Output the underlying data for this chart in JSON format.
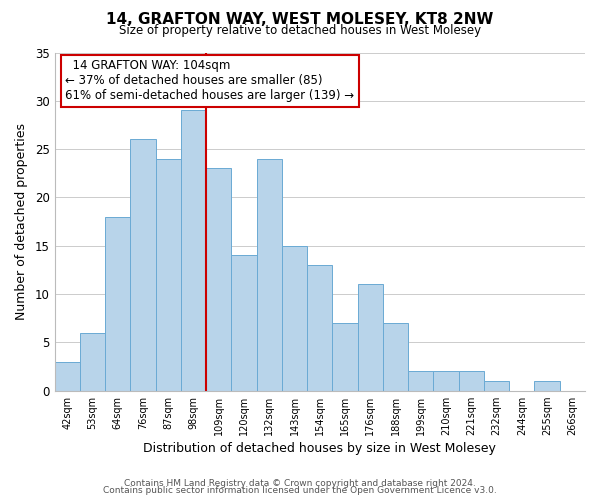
{
  "title": "14, GRAFTON WAY, WEST MOLESEY, KT8 2NW",
  "subtitle": "Size of property relative to detached houses in West Molesey",
  "xlabel": "Distribution of detached houses by size in West Molesey",
  "ylabel": "Number of detached properties",
  "bar_labels": [
    "42sqm",
    "53sqm",
    "64sqm",
    "76sqm",
    "87sqm",
    "98sqm",
    "109sqm",
    "120sqm",
    "132sqm",
    "143sqm",
    "154sqm",
    "165sqm",
    "176sqm",
    "188sqm",
    "199sqm",
    "210sqm",
    "221sqm",
    "232sqm",
    "244sqm",
    "255sqm",
    "266sqm"
  ],
  "bar_values": [
    3,
    6,
    18,
    26,
    24,
    29,
    23,
    14,
    24,
    15,
    13,
    7,
    11,
    7,
    2,
    2,
    2,
    1,
    0,
    1,
    0
  ],
  "bar_color": "#b8d4ea",
  "bar_edge_color": "#6aaad4",
  "vline_x": 5.5,
  "vline_color": "#cc0000",
  "annotation_title": "14 GRAFTON WAY: 104sqm",
  "annotation_line1": "← 37% of detached houses are smaller (85)",
  "annotation_line2": "61% of semi-detached houses are larger (139) →",
  "annotation_box_color": "#ffffff",
  "annotation_box_edge": "#cc0000",
  "ylim": [
    0,
    35
  ],
  "yticks": [
    0,
    5,
    10,
    15,
    20,
    25,
    30,
    35
  ],
  "footer1": "Contains HM Land Registry data © Crown copyright and database right 2024.",
  "footer2": "Contains public sector information licensed under the Open Government Licence v3.0.",
  "bg_color": "#ffffff",
  "grid_color": "#cccccc"
}
